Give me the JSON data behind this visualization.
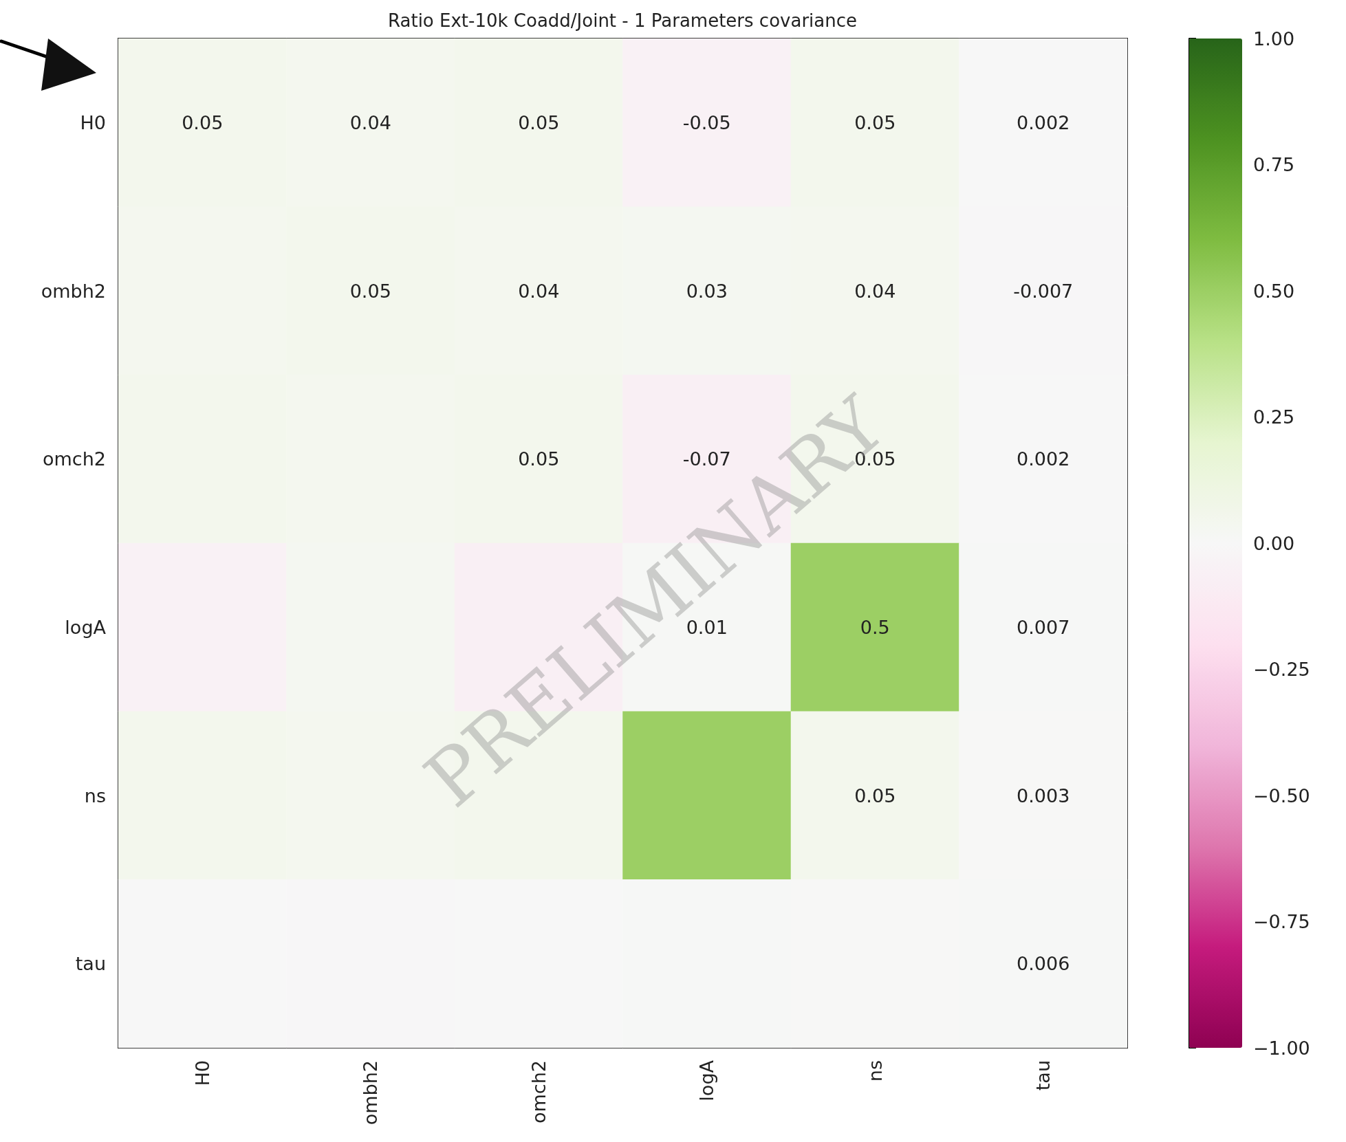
{
  "chart_data": {
    "type": "heatmap",
    "title": "Ratio Ext-10k Coadd/Joint - 1 Parameters covariance",
    "categories": [
      "H0",
      "ombh2",
      "omch2",
      "logA",
      "ns",
      "tau"
    ],
    "y_categories": [
      "H0",
      "ombh2",
      "omch2",
      "logA",
      "ns",
      "tau"
    ],
    "cells": [
      [
        0.05,
        0.04,
        0.05,
        -0.05,
        0.05,
        0.002
      ],
      [
        0.04,
        0.05,
        0.04,
        0.03,
        0.04,
        -0.007
      ],
      [
        0.05,
        0.04,
        0.05,
        -0.07,
        0.05,
        0.002
      ],
      [
        -0.05,
        0.03,
        -0.07,
        0.01,
        0.5,
        0.007
      ],
      [
        0.05,
        0.04,
        0.05,
        0.5,
        0.05,
        0.003
      ],
      [
        0.002,
        -0.007,
        0.002,
        0.007,
        0.003,
        0.006
      ]
    ],
    "cell_labels": [
      [
        "0.05",
        "0.04",
        "0.05",
        "-0.05",
        "0.05",
        "0.002"
      ],
      [
        null,
        "0.05",
        "0.04",
        "0.03",
        "0.04",
        "-0.007"
      ],
      [
        null,
        null,
        "0.05",
        "-0.07",
        "0.05",
        "0.002"
      ],
      [
        null,
        null,
        null,
        "0.01",
        "0.5",
        "0.007"
      ],
      [
        null,
        null,
        null,
        null,
        "0.05",
        "0.003"
      ],
      [
        null,
        null,
        null,
        null,
        null,
        "0.006"
      ]
    ],
    "clim": [
      -1,
      1
    ],
    "cticks": [
      {
        "value": -1,
        "label": "−1.00"
      },
      {
        "value": -0.75,
        "label": "−0.75"
      },
      {
        "value": -0.5,
        "label": "−0.50"
      },
      {
        "value": -0.25,
        "label": "−0.25"
      },
      {
        "value": 0,
        "label": "0.00"
      },
      {
        "value": 0.25,
        "label": "0.25"
      },
      {
        "value": 0.5,
        "label": "0.50"
      },
      {
        "value": 0.75,
        "label": "0.75"
      },
      {
        "value": 1,
        "label": "1.00"
      }
    ],
    "annotations": [
      "PRELIMINARY"
    ]
  }
}
